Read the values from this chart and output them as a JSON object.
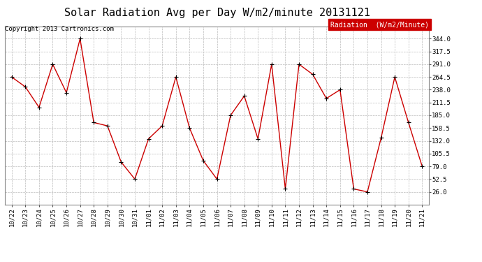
{
  "title": "Solar Radiation Avg per Day W/m2/minute 20131121",
  "copyright_text": "Copyright 2013 Cartronics.com",
  "legend_text": "Radiation  (W/m2/Minute)",
  "legend_bg": "#cc0000",
  "legend_fg": "#ffffff",
  "line_color": "#cc0000",
  "marker_color": "#000000",
  "background_color": "#ffffff",
  "grid_color": "#bbbbbb",
  "labels": [
    "10/22",
    "10/23",
    "10/24",
    "10/25",
    "10/26",
    "10/27",
    "10/28",
    "10/29",
    "10/30",
    "10/31",
    "11/01",
    "11/02",
    "11/03",
    "11/04",
    "11/05",
    "11/06",
    "11/07",
    "11/08",
    "11/09",
    "11/10",
    "11/11",
    "11/12",
    "11/13",
    "11/14",
    "11/15",
    "11/16",
    "11/17",
    "11/18",
    "11/19",
    "11/20",
    "11/21"
  ],
  "values": [
    264.5,
    244.0,
    201.5,
    291.0,
    232.0,
    344.0,
    170.0,
    163.0,
    88.0,
    52.5,
    136.0,
    163.0,
    264.5,
    158.5,
    91.0,
    52.5,
    185.0,
    225.0,
    136.0,
    291.0,
    32.0,
    291.0,
    270.0,
    220.0,
    238.0,
    32.0,
    26.0,
    138.0,
    264.5,
    170.0,
    79.0
  ],
  "ylim": [
    0,
    370
  ],
  "yticks": [
    26.0,
    52.5,
    79.0,
    105.5,
    132.0,
    158.5,
    185.0,
    211.5,
    238.0,
    264.5,
    291.0,
    317.5,
    344.0
  ],
  "title_fontsize": 11,
  "tick_fontsize": 6.5,
  "copyright_fontsize": 6.5,
  "legend_fontsize": 7
}
